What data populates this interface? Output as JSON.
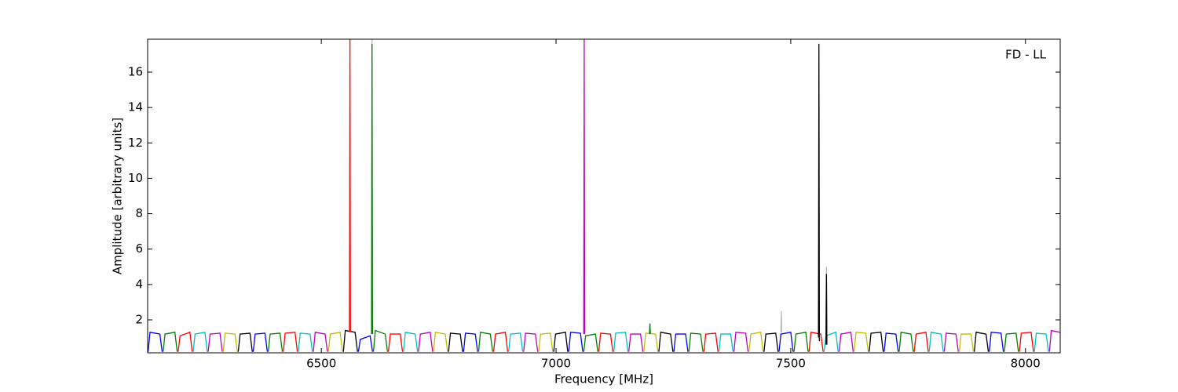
{
  "chart_data": {
    "type": "line",
    "annotation": "FD - LL",
    "x_label": "Frequency [MHz]",
    "y_label": "Amplitude [arbitrary units]",
    "xlim": [
      6130,
      8074
    ],
    "xticks": [
      6500,
      7000,
      7500,
      8000
    ],
    "ylim": [
      0.14,
      17.86
    ],
    "yticks": [
      2,
      4,
      6,
      8,
      10,
      12,
      14,
      16
    ],
    "series": [
      {
        "color": "#bbbbbb",
        "x": [
          6607,
          6608,
          6609,
          null,
          7479,
          7480,
          7481,
          null,
          7575,
          7576,
          7577
        ],
        "values": [
          1.2,
          17.9,
          1.2,
          null,
          1.3,
          2.5,
          1.3,
          null,
          0.8,
          5.0,
          0.8
        ]
      },
      {
        "color": "#0000ff",
        "x": [
          6131,
          6135,
          6156,
          6161,
          null,
          6355,
          6359,
          6380,
          6385,
          null,
          6579,
          6583,
          6604,
          6609,
          null,
          6803,
          6807,
          6828,
          6833,
          null,
          7027,
          7031,
          7052,
          7057,
          null,
          7251,
          7255,
          7276,
          7281,
          null,
          7475,
          7479,
          7500,
          7505,
          null,
          7699,
          7703,
          7724,
          7729,
          null,
          7923,
          7927,
          7948,
          7953
        ],
        "values": [
          0.2,
          1.3,
          1.2,
          0.2,
          null,
          0.2,
          1.2,
          1.25,
          0.2,
          null,
          0.2,
          0.9,
          1.1,
          0.2,
          null,
          0.2,
          1.25,
          1.2,
          0.2,
          null,
          0.2,
          1.3,
          1.25,
          0.2,
          null,
          0.2,
          1.2,
          1.2,
          0.2,
          null,
          0.2,
          1.2,
          1.3,
          0.2,
          null,
          0.2,
          1.25,
          1.2,
          0.2,
          null,
          0.2,
          1.3,
          1.25,
          0.2
        ]
      },
      {
        "color": "#008000",
        "x": [
          6163,
          6167,
          6188,
          6193,
          null,
          6387,
          6391,
          6412,
          6417,
          null,
          6611,
          6615,
          6636,
          6641,
          null,
          6835,
          6839,
          6860,
          6865,
          null,
          7059,
          7063,
          7084,
          7089,
          null,
          7283,
          7287,
          7308,
          7313,
          null,
          7507,
          7511,
          7532,
          7537,
          null,
          7731,
          7735,
          7756,
          7761,
          null,
          7955,
          7959,
          7980,
          7985
        ],
        "values": [
          0.2,
          1.2,
          1.3,
          0.2,
          null,
          0.2,
          1.2,
          1.25,
          0.2,
          null,
          0.2,
          1.4,
          1.2,
          0.2,
          null,
          0.2,
          1.3,
          1.2,
          0.2,
          null,
          0.2,
          1.1,
          1.2,
          0.2,
          null,
          0.2,
          1.25,
          1.2,
          0.2,
          null,
          0.2,
          1.2,
          1.3,
          0.2,
          null,
          0.2,
          1.3,
          1.2,
          0.2,
          null,
          0.2,
          1.2,
          1.25,
          0.2
        ]
      },
      {
        "color": "#ff0000",
        "x": [
          6195,
          6199,
          6220,
          6225,
          null,
          6419,
          6423,
          6444,
          6449,
          null,
          6643,
          6647,
          6668,
          6673,
          null,
          6867,
          6871,
          6892,
          6897,
          null,
          7091,
          7095,
          7116,
          7121,
          null,
          7315,
          7319,
          7340,
          7345,
          null,
          7539,
          7543,
          7564,
          7569,
          null,
          7763,
          7767,
          7788,
          7793,
          null,
          7987,
          7991,
          8012,
          8017
        ],
        "values": [
          0.2,
          1.1,
          1.3,
          0.2,
          null,
          0.2,
          1.25,
          1.3,
          0.2,
          null,
          0.2,
          1.2,
          1.2,
          0.2,
          null,
          0.2,
          1.2,
          1.3,
          0.2,
          null,
          0.2,
          1.25,
          1.2,
          0.2,
          null,
          0.2,
          1.2,
          1.25,
          0.2,
          null,
          0.2,
          1.3,
          1.2,
          0.2,
          null,
          0.2,
          1.2,
          1.3,
          0.2,
          null,
          0.2,
          1.25,
          1.3,
          0.2
        ]
      },
      {
        "color": "#00bfbf",
        "x": [
          6227,
          6231,
          6252,
          6257,
          null,
          6451,
          6455,
          6476,
          6481,
          null,
          6675,
          6679,
          6700,
          6705,
          null,
          6899,
          6903,
          6924,
          6929,
          null,
          7123,
          7127,
          7148,
          7153,
          null,
          7347,
          7351,
          7372,
          7377,
          null,
          7571,
          7575,
          7596,
          7601,
          null,
          7795,
          7799,
          7820,
          7825,
          null,
          8019,
          8023,
          8044,
          8049
        ],
        "values": [
          0.2,
          1.2,
          1.3,
          0.2,
          null,
          0.2,
          1.25,
          1.2,
          0.2,
          null,
          0.2,
          1.3,
          1.2,
          0.2,
          null,
          0.2,
          1.2,
          1.25,
          0.2,
          null,
          0.2,
          1.25,
          1.3,
          0.2,
          null,
          0.2,
          1.2,
          1.2,
          0.2,
          null,
          0.2,
          1.1,
          1.3,
          0.2,
          null,
          0.2,
          1.3,
          1.2,
          0.2,
          null,
          0.2,
          1.25,
          1.2,
          0.2
        ]
      },
      {
        "color": "#bf00bf",
        "x": [
          6259,
          6263,
          6284,
          6289,
          null,
          6483,
          6487,
          6508,
          6513,
          null,
          6707,
          6711,
          6732,
          6737,
          null,
          6931,
          6935,
          6956,
          6961,
          null,
          7155,
          7159,
          7180,
          7185,
          null,
          7379,
          7383,
          7404,
          7409,
          null,
          7603,
          7607,
          7628,
          7633,
          null,
          7827,
          7831,
          7852,
          7857,
          null,
          8051,
          8055,
          8073
        ],
        "values": [
          0.2,
          1.2,
          1.25,
          0.2,
          null,
          0.2,
          1.3,
          1.2,
          0.2,
          null,
          0.2,
          1.2,
          1.3,
          0.2,
          null,
          0.2,
          1.25,
          1.2,
          0.2,
          null,
          0.2,
          1.2,
          1.2,
          0.2,
          null,
          0.2,
          1.3,
          1.25,
          0.2,
          null,
          0.2,
          1.2,
          1.3,
          0.2,
          null,
          0.2,
          1.25,
          1.2,
          0.2,
          null,
          0.2,
          1.4,
          1.3
        ]
      },
      {
        "color": "#bfbf00",
        "x": [
          6291,
          6295,
          6316,
          6321,
          null,
          6515,
          6519,
          6540,
          6545,
          null,
          6739,
          6743,
          6764,
          6769,
          null,
          6963,
          6967,
          6988,
          6993,
          null,
          7187,
          7191,
          7212,
          7217,
          null,
          7411,
          7415,
          7436,
          7441,
          null,
          7635,
          7639,
          7660,
          7665,
          null,
          7859,
          7863,
          7884,
          7889
        ],
        "values": [
          0.2,
          1.25,
          1.2,
          0.2,
          null,
          0.2,
          1.2,
          1.3,
          0.2,
          null,
          0.2,
          1.3,
          1.2,
          0.2,
          null,
          0.2,
          1.2,
          1.25,
          0.2,
          null,
          0.2,
          1.25,
          1.2,
          0.2,
          null,
          0.2,
          1.2,
          1.3,
          0.2,
          null,
          0.2,
          1.3,
          1.25,
          0.2,
          null,
          0.2,
          1.2,
          1.2,
          0.2
        ]
      },
      {
        "color": "#000000",
        "x": [
          6323,
          6327,
          6348,
          6353,
          null,
          6547,
          6551,
          6572,
          6577,
          null,
          6771,
          6775,
          6796,
          6801,
          null,
          6995,
          6999,
          7020,
          7025,
          null,
          7219,
          7223,
          7244,
          7249,
          null,
          7443,
          7447,
          7468,
          7473,
          null,
          7667,
          7671,
          7692,
          7697,
          null,
          7891,
          7895,
          7916,
          7921
        ],
        "values": [
          0.2,
          1.2,
          1.25,
          0.2,
          null,
          0.2,
          1.4,
          1.3,
          0.2,
          null,
          0.2,
          1.25,
          1.2,
          0.2,
          null,
          0.2,
          1.2,
          1.3,
          0.2,
          null,
          0.2,
          1.3,
          1.2,
          0.2,
          null,
          0.2,
          1.2,
          1.25,
          0.2,
          null,
          0.2,
          1.25,
          1.3,
          0.2,
          null,
          0.2,
          1.3,
          1.2,
          0.2
        ]
      },
      {
        "color": "#ff0000",
        "x": [
          6560,
          6561,
          6562
        ],
        "values": [
          1.3,
          17.9,
          1.3
        ]
      },
      {
        "color": "#008000",
        "x": [
          6607,
          6608,
          6609,
          null,
          7199,
          7200,
          7201
        ],
        "values": [
          1.2,
          17.6,
          1.2,
          null,
          1.2,
          1.8,
          1.2
        ]
      },
      {
        "color": "#bf00bf",
        "x": [
          7059,
          7060,
          7061
        ],
        "values": [
          1.2,
          17.9,
          1.2
        ]
      },
      {
        "color": "#000000",
        "x": [
          7559,
          7560,
          7561,
          null,
          7575,
          7576,
          7577
        ],
        "values": [
          1.0,
          17.6,
          0.8,
          null,
          0.6,
          4.6,
          0.6
        ]
      }
    ]
  }
}
